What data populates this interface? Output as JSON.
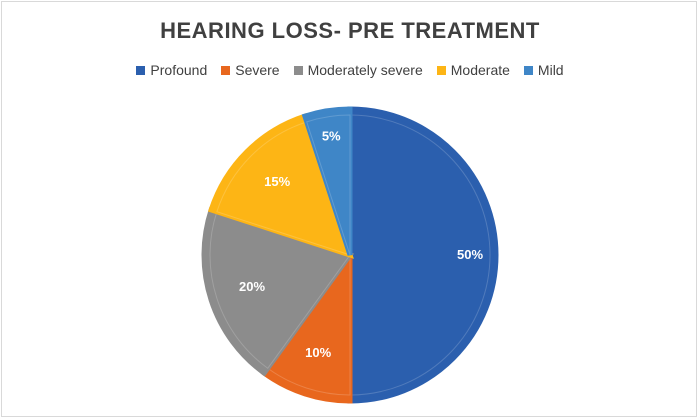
{
  "chart_data": {
    "type": "pie",
    "title": "HEARING LOSS- PRE TREATMENT",
    "categories": [
      "Profound",
      "Severe",
      "Moderately severe",
      "Moderate",
      "Mild"
    ],
    "values": [
      50,
      10,
      20,
      15,
      5
    ],
    "labels": [
      "50%",
      "10%",
      "20%",
      "15%",
      "5%"
    ],
    "colors": [
      "#2B5FAE",
      "#E8671E",
      "#8C8C8C",
      "#FDB515",
      "#3F86C7"
    ],
    "legend_position": "top"
  }
}
